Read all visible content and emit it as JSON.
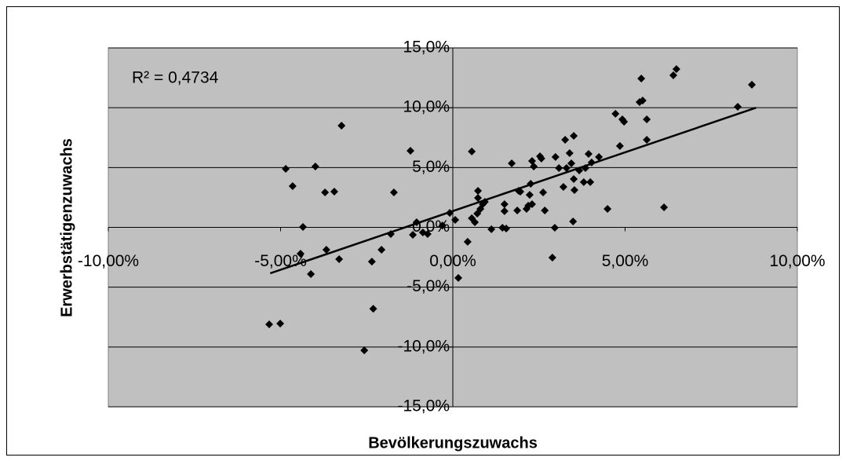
{
  "chart_data": {
    "type": "scatter",
    "x_label": "Bevölkerungszuwachs",
    "y_label": "Erwerbstätigenzuwachs",
    "annotation": "R² = 0,4734",
    "color": "#000000",
    "plot_color": "#c0c0c0",
    "grid": true,
    "xlim": [
      -10,
      10
    ],
    "ylim": [
      -15,
      15
    ],
    "xticks": [
      {
        "value": -10,
        "label": "-10,00%"
      },
      {
        "value": -5,
        "label": "-5,00%"
      },
      {
        "value": 0,
        "label": "0,00%"
      },
      {
        "value": 5,
        "label": "5,00%"
      },
      {
        "value": 10,
        "label": "10,00%"
      }
    ],
    "yticks": [
      {
        "value": 15,
        "label": "15,0%"
      },
      {
        "value": 10,
        "label": "10,0%"
      },
      {
        "value": 5,
        "label": "5,0%"
      },
      {
        "value": 0,
        "label": "0,0%"
      },
      {
        "value": -5,
        "label": "-5,0%"
      },
      {
        "value": -10,
        "label": "-10,0%"
      },
      {
        "value": -15,
        "label": "-15,0%"
      }
    ],
    "x": [
      -5.33,
      -5.01,
      -4.85,
      -4.65,
      -4.35,
      -4.42,
      -4.12,
      -3.99,
      -3.71,
      -3.67,
      -3.44,
      -3.3,
      -3.23,
      -2.57,
      -2.35,
      -2.31,
      -2.07,
      -1.71,
      -1.8,
      -1.23,
      -1.16,
      -1.05,
      -0.87,
      -0.73,
      -0.3,
      -0.09,
      0.07,
      0.16,
      0.43,
      0.55,
      0.55,
      0.64,
      0.73,
      0.73,
      0.71,
      0.8,
      0.87,
      0.93,
      1.12,
      1.44,
      1.5,
      1.5,
      1.55,
      1.71,
      1.87,
      1.91,
      1.96,
      2.14,
      2.19,
      2.23,
      2.26,
      2.3,
      2.3,
      2.35,
      2.53,
      2.57,
      2.62,
      2.67,
      2.89,
      2.96,
      2.98,
      3.08,
      3.21,
      3.26,
      3.3,
      3.39,
      3.44,
      3.49,
      3.51,
      3.53,
      3.51,
      3.67,
      3.8,
      3.85,
      3.94,
      3.99,
      4.03,
      4.24,
      4.49,
      4.72,
      4.85,
      4.92,
      4.97,
      5.47,
      5.42,
      5.51,
      5.63,
      5.63,
      6.13,
      6.4,
      6.49,
      8.27,
      8.68
    ],
    "values": [
      -8.11,
      -8.04,
      4.89,
      3.45,
      0.03,
      -2.2,
      -3.91,
      5.09,
      2.92,
      -1.87,
      2.99,
      -2.66,
      8.5,
      -10.28,
      -2.86,
      -6.8,
      -1.87,
      2.92,
      -0.56,
      6.4,
      -0.62,
      0.43,
      -0.43,
      -0.56,
      0.16,
      1.21,
      0.62,
      -4.23,
      -1.21,
      6.34,
      0.76,
      0.43,
      3.05,
      2.46,
      1.15,
      1.54,
      1.94,
      2.13,
      -0.16,
      -0.03,
      1.94,
      1.35,
      -0.1,
      5.35,
      1.41,
      3.05,
      2.99,
      1.54,
      1.81,
      2.72,
      3.64,
      1.94,
      5.55,
      5.09,
      5.94,
      5.75,
      2.92,
      1.41,
      -2.53,
      -0.03,
      5.88,
      4.96,
      3.38,
      7.32,
      4.96,
      6.2,
      5.35,
      0.49,
      7.65,
      3.12,
      4.04,
      4.76,
      3.78,
      4.96,
      6.14,
      3.78,
      5.42,
      5.88,
      1.54,
      9.49,
      6.8,
      9.03,
      8.83,
      12.44,
      10.47,
      10.6,
      9.03,
      7.32,
      1.67,
      12.71,
      13.23,
      10.08,
      11.92
    ],
    "trendline": {
      "x": [
        -5.3,
        8.8
      ],
      "y": [
        -3.84,
        10.0
      ]
    }
  }
}
